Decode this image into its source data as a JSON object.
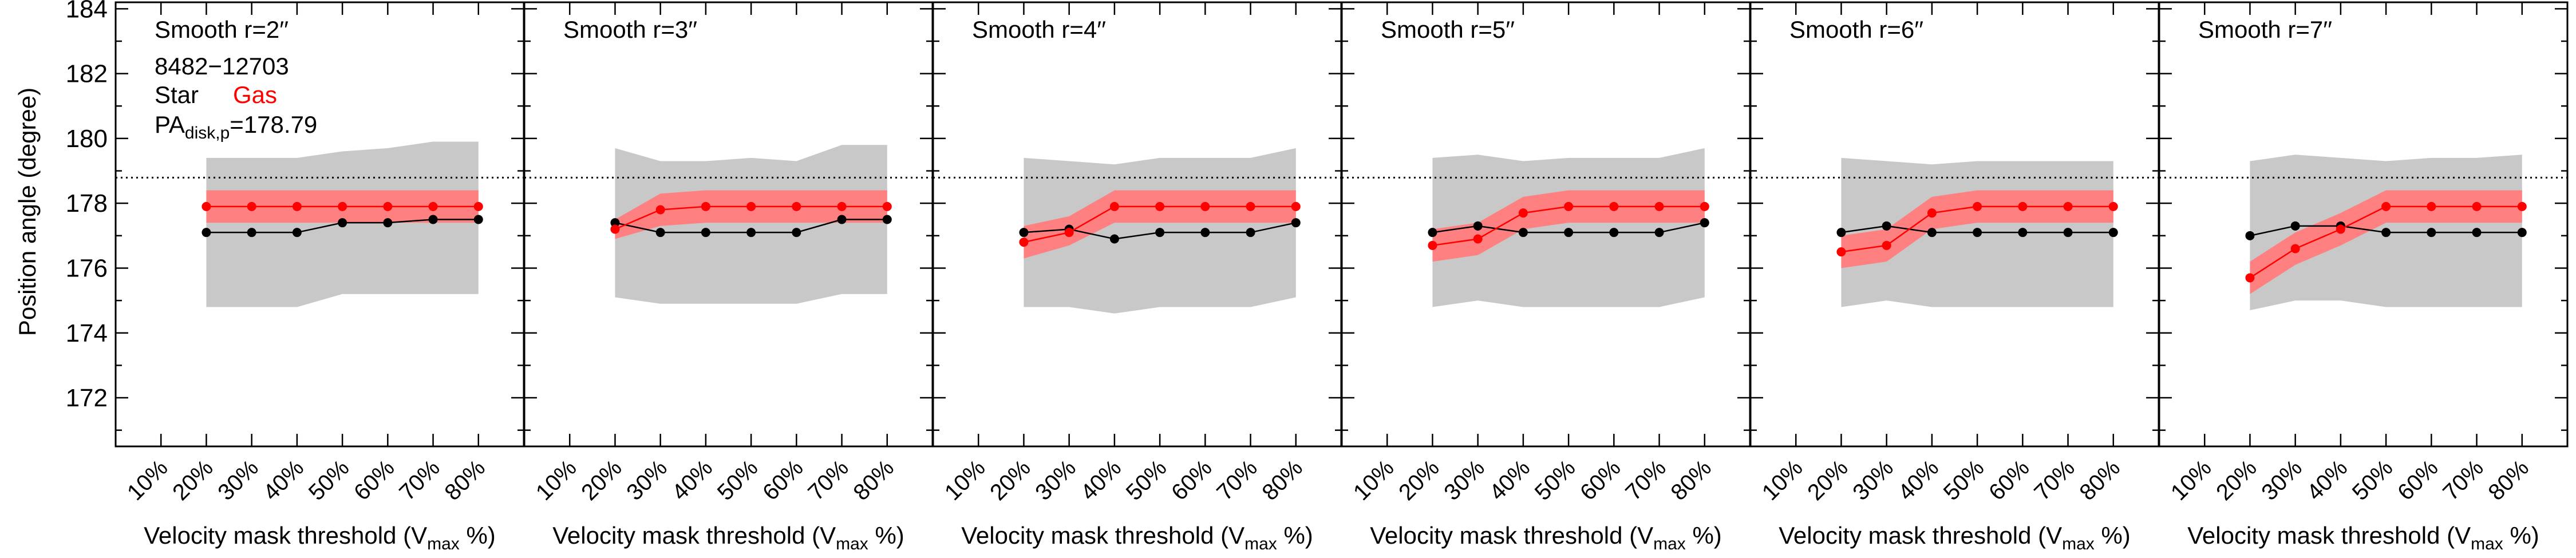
{
  "figure": {
    "ylabel": "Position angle (degree)",
    "xlabel_main": "Velocity mask threshold (V",
    "xlabel_sub": "max",
    "xlabel_tail": " %)",
    "galaxy_id": "8482−12703",
    "legend_star": "Star",
    "legend_gas": "Gas",
    "pa_label_main": "PA",
    "pa_label_sub": "disk,p",
    "pa_label_value": "=178.79"
  },
  "colors": {
    "star": "#000000",
    "gas": "#ff0000",
    "gas_band": "#ff8080",
    "star_band": "#c8c8c8",
    "reference_line": "#000000"
  },
  "chart_data": [
    {
      "type": "line",
      "title": "Smooth r=2′′",
      "x": [
        "10%",
        "20%",
        "30%",
        "40%",
        "50%",
        "60%",
        "70%",
        "80%"
      ],
      "xlabel": "Velocity mask threshold (Vmax %)",
      "ylabel": "Position angle (degree)",
      "ylim": [
        170.5,
        184.2
      ],
      "yticks": [
        172,
        174,
        176,
        178,
        180,
        182,
        184
      ],
      "reference_line": 178.79,
      "series": [
        {
          "name": "Star",
          "values": [
            null,
            177.1,
            177.1,
            177.1,
            177.4,
            177.4,
            177.5,
            177.5
          ]
        },
        {
          "name": "Gas",
          "values": [
            null,
            177.9,
            177.9,
            177.9,
            177.9,
            177.9,
            177.9,
            177.9
          ]
        }
      ],
      "star_band": {
        "lower": [
          null,
          174.8,
          174.8,
          174.8,
          175.2,
          175.2,
          175.2,
          175.2
        ],
        "upper": [
          null,
          179.4,
          179.4,
          179.4,
          179.6,
          179.7,
          179.9,
          179.9
        ]
      },
      "gas_band": {
        "lower": [
          null,
          177.4,
          177.4,
          177.4,
          177.4,
          177.4,
          177.4,
          177.4
        ],
        "upper": [
          null,
          178.4,
          178.4,
          178.4,
          178.4,
          178.4,
          178.4,
          178.4
        ]
      }
    },
    {
      "type": "line",
      "title": "Smooth r=3′′",
      "x": [
        "10%",
        "20%",
        "30%",
        "40%",
        "50%",
        "60%",
        "70%",
        "80%"
      ],
      "xlabel": "Velocity mask threshold (Vmax %)",
      "ylim": [
        170.5,
        184.2
      ],
      "reference_line": 178.79,
      "series": [
        {
          "name": "Star",
          "values": [
            null,
            177.4,
            177.1,
            177.1,
            177.1,
            177.1,
            177.5,
            177.5
          ]
        },
        {
          "name": "Gas",
          "values": [
            null,
            177.2,
            177.8,
            177.9,
            177.9,
            177.9,
            177.9,
            177.9
          ]
        }
      ],
      "star_band": {
        "lower": [
          null,
          175.1,
          174.9,
          174.9,
          174.9,
          174.9,
          175.2,
          175.2
        ],
        "upper": [
          null,
          179.7,
          179.3,
          179.3,
          179.4,
          179.3,
          179.8,
          179.8
        ]
      },
      "gas_band": {
        "lower": [
          null,
          176.9,
          177.3,
          177.4,
          177.4,
          177.4,
          177.4,
          177.4
        ],
        "upper": [
          null,
          177.5,
          178.3,
          178.4,
          178.4,
          178.4,
          178.4,
          178.4
        ]
      }
    },
    {
      "type": "line",
      "title": "Smooth r=4′′",
      "x": [
        "10%",
        "20%",
        "30%",
        "40%",
        "50%",
        "60%",
        "70%",
        "80%"
      ],
      "xlabel": "Velocity mask threshold (Vmax %)",
      "ylim": [
        170.5,
        184.2
      ],
      "reference_line": 178.79,
      "series": [
        {
          "name": "Star",
          "values": [
            null,
            177.1,
            177.2,
            176.9,
            177.1,
            177.1,
            177.1,
            177.4
          ]
        },
        {
          "name": "Gas",
          "values": [
            null,
            176.8,
            177.1,
            177.9,
            177.9,
            177.9,
            177.9,
            177.9
          ]
        }
      ],
      "star_band": {
        "lower": [
          null,
          174.8,
          174.8,
          174.6,
          174.8,
          174.8,
          174.8,
          175.1
        ],
        "upper": [
          null,
          179.4,
          179.3,
          179.2,
          179.4,
          179.4,
          179.4,
          179.7
        ]
      },
      "gas_band": {
        "lower": [
          null,
          176.3,
          176.7,
          177.4,
          177.4,
          177.4,
          177.4,
          177.4
        ],
        "upper": [
          null,
          177.3,
          177.6,
          178.4,
          178.4,
          178.4,
          178.4,
          178.4
        ]
      }
    },
    {
      "type": "line",
      "title": "Smooth r=5′′",
      "x": [
        "10%",
        "20%",
        "30%",
        "40%",
        "50%",
        "60%",
        "70%",
        "80%"
      ],
      "xlabel": "Velocity mask threshold (Vmax %)",
      "ylim": [
        170.5,
        184.2
      ],
      "reference_line": 178.79,
      "series": [
        {
          "name": "Star",
          "values": [
            null,
            177.1,
            177.3,
            177.1,
            177.1,
            177.1,
            177.1,
            177.4
          ]
        },
        {
          "name": "Gas",
          "values": [
            null,
            176.7,
            176.9,
            177.7,
            177.9,
            177.9,
            177.9,
            177.9
          ]
        }
      ],
      "star_band": {
        "lower": [
          null,
          174.8,
          175.0,
          174.8,
          174.8,
          174.8,
          174.8,
          175.1
        ],
        "upper": [
          null,
          179.4,
          179.5,
          179.3,
          179.4,
          179.4,
          179.4,
          179.7
        ]
      },
      "gas_band": {
        "lower": [
          null,
          176.2,
          176.4,
          177.2,
          177.4,
          177.4,
          177.4,
          177.4
        ],
        "upper": [
          null,
          177.2,
          177.4,
          178.2,
          178.4,
          178.4,
          178.4,
          178.4
        ]
      }
    },
    {
      "type": "line",
      "title": "Smooth r=6′′",
      "x": [
        "10%",
        "20%",
        "30%",
        "40%",
        "50%",
        "60%",
        "70%",
        "80%"
      ],
      "xlabel": "Velocity mask threshold (Vmax %)",
      "ylim": [
        170.5,
        184.2
      ],
      "reference_line": 178.79,
      "series": [
        {
          "name": "Star",
          "values": [
            null,
            177.1,
            177.3,
            177.1,
            177.1,
            177.1,
            177.1,
            177.1
          ]
        },
        {
          "name": "Gas",
          "values": [
            null,
            176.5,
            176.7,
            177.7,
            177.9,
            177.9,
            177.9,
            177.9
          ]
        }
      ],
      "star_band": {
        "lower": [
          null,
          174.8,
          175.0,
          174.8,
          174.8,
          174.8,
          174.8,
          174.8
        ],
        "upper": [
          null,
          179.4,
          179.3,
          179.2,
          179.3,
          179.3,
          179.3,
          179.3
        ]
      },
      "gas_band": {
        "lower": [
          null,
          176.0,
          176.2,
          177.2,
          177.4,
          177.4,
          177.4,
          177.4
        ],
        "upper": [
          null,
          177.0,
          177.2,
          178.2,
          178.4,
          178.4,
          178.4,
          178.4
        ]
      }
    },
    {
      "type": "line",
      "title": "Smooth r=7′′",
      "x": [
        "10%",
        "20%",
        "30%",
        "40%",
        "50%",
        "60%",
        "70%",
        "80%"
      ],
      "xlabel": "Velocity mask threshold (Vmax %)",
      "ylim": [
        170.5,
        184.2
      ],
      "reference_line": 178.79,
      "series": [
        {
          "name": "Star",
          "values": [
            null,
            177.0,
            177.3,
            177.3,
            177.1,
            177.1,
            177.1,
            177.1
          ]
        },
        {
          "name": "Gas",
          "values": [
            null,
            175.7,
            176.6,
            177.2,
            177.9,
            177.9,
            177.9,
            177.9
          ]
        }
      ],
      "star_band": {
        "lower": [
          null,
          174.7,
          175.0,
          175.0,
          174.8,
          174.8,
          174.8,
          174.8
        ],
        "upper": [
          null,
          179.3,
          179.5,
          179.4,
          179.3,
          179.4,
          179.4,
          179.5
        ]
      },
      "gas_band": {
        "lower": [
          null,
          175.2,
          176.1,
          176.7,
          177.4,
          177.4,
          177.4,
          177.4
        ],
        "upper": [
          null,
          176.2,
          177.1,
          177.7,
          178.4,
          178.4,
          178.4,
          178.4
        ]
      }
    }
  ]
}
